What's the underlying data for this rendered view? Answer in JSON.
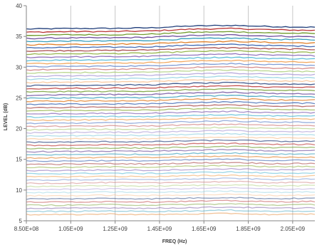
{
  "chart_data": {
    "type": "line",
    "title": "",
    "xlabel": "FREQ (Hz)",
    "ylabel": "LEVEL (dB)",
    "xlim": [
      850000000,
      2150000000
    ],
    "ylim": [
      5,
      40
    ],
    "x_ticks": [
      850000000,
      1050000000,
      1250000000,
      1450000000,
      1650000000,
      1850000000,
      2050000000
    ],
    "x_tick_labels": [
      "8.50E+08",
      "1.05E+09",
      "1.25E+09",
      "1.45E+09",
      "1.65E+09",
      "1.85E+09",
      "2.05E+09"
    ],
    "y_ticks": [
      5,
      10,
      15,
      20,
      25,
      30,
      35,
      40
    ],
    "y_tick_labels": [
      "5",
      "10",
      "15",
      "20",
      "25",
      "30",
      "35",
      "40"
    ],
    "grid": {
      "vertical": true,
      "horizontal": false
    },
    "legend": "none",
    "x": [
      850000000,
      1050000000,
      1250000000,
      1450000000,
      1650000000,
      1850000000,
      2050000000,
      2150000000
    ],
    "series_family": {
      "count": 60,
      "start_level": [
        36.2,
        36.3,
        36.3,
        36.4,
        36.7,
        36.8,
        36.6,
        36.5
      ],
      "end_level": [
        6.0,
        6.0,
        6.1,
        6.0,
        6.1,
        6.2,
        6.0,
        6.1
      ],
      "palette": [
        "#1f3d7a",
        "#b83232",
        "#6e9a2a",
        "#6b4a9a",
        "#2f9bb8",
        "#e07b20",
        "#3a64b0",
        "#a84848",
        "#8fb040",
        "#8a6ab8",
        "#4fb8d4",
        "#f0a050",
        "#7090d0",
        "#d08080",
        "#b0d080",
        "#b0a0d8",
        "#90d0e0",
        "#f8c090"
      ]
    }
  }
}
